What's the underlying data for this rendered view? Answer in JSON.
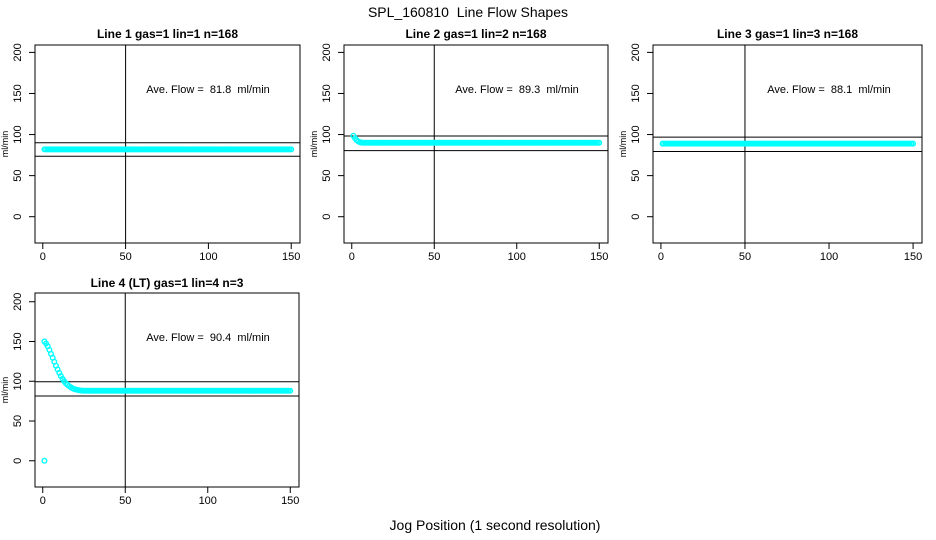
{
  "title": "SPL_160810  Line Flow Shapes",
  "xlabel": "Jog Position (1 second resolution)",
  "colors": {
    "points": "#00FFFF",
    "axis": "#000000",
    "background": "#FFFFFF"
  },
  "chart_data": [
    {
      "type": "scatter",
      "title": "Line 1 gas=1 lin=1 n=168",
      "annotation": "Ave. Flow =  81.8  ml/min",
      "ave_flow_ml_min": 81.8,
      "ylabel": "ml/min",
      "xticks": [
        0,
        50,
        100,
        150
      ],
      "yticks": [
        0,
        50,
        100,
        150,
        200
      ],
      "xlim": [
        -4.7,
        155.3
      ],
      "ylim": [
        -32,
        209
      ],
      "vline_x": 50,
      "hlines": [
        90.0,
        73.6
      ],
      "series": {
        "x_start": 1,
        "x_end": 150,
        "flat_value": 82,
        "transient": [],
        "outliers": []
      }
    },
    {
      "type": "scatter",
      "title": "Line 2 gas=1 lin=2 n=168",
      "annotation": "Ave. Flow =  89.3  ml/min",
      "ave_flow_ml_min": 89.3,
      "ylabel": "ml/min",
      "xticks": [
        0,
        50,
        100,
        150
      ],
      "yticks": [
        0,
        50,
        100,
        150,
        200
      ],
      "xlim": [
        -4.7,
        155.3
      ],
      "ylim": [
        -32,
        209
      ],
      "vline_x": 50,
      "hlines": [
        98.2,
        80.4
      ],
      "series": {
        "x_start": 1,
        "x_end": 150,
        "flat_value": 90,
        "transient": [
          [
            1,
            98.5
          ],
          [
            2,
            95.5
          ],
          [
            3,
            93
          ],
          [
            4,
            91.5
          ],
          [
            5,
            90.7
          ],
          [
            6,
            90.2
          ]
        ],
        "outliers": []
      }
    },
    {
      "type": "scatter",
      "title": "Line 3 gas=1 lin=3 n=168",
      "annotation": "Ave. Flow =  88.1  ml/min",
      "ave_flow_ml_min": 88.1,
      "ylabel": "ml/min",
      "xticks": [
        0,
        50,
        100,
        150
      ],
      "yticks": [
        0,
        50,
        100,
        150,
        200
      ],
      "xlim": [
        -4.7,
        155.3
      ],
      "ylim": [
        -32,
        209
      ],
      "vline_x": 50,
      "hlines": [
        96.9,
        79.3
      ],
      "series": {
        "x_start": 1,
        "x_end": 150,
        "flat_value": 89,
        "transient": [],
        "outliers": []
      }
    },
    {
      "type": "scatter",
      "title": "Line 4 (LT) gas=1 lin=4 n=3",
      "annotation": "Ave. Flow =  90.4  ml/min",
      "ave_flow_ml_min": 90.4,
      "ylabel": "ml/min",
      "xticks": [
        0,
        50,
        100,
        150
      ],
      "yticks": [
        0,
        50,
        100,
        150,
        200
      ],
      "xlim": [
        -4.7,
        155.3
      ],
      "ylim": [
        -33,
        211
      ],
      "vline_x": 50,
      "hlines": [
        99.4,
        81.4
      ],
      "series": {
        "x_start": 1,
        "x_end": 150,
        "flat_value": 88,
        "transient": [
          [
            1,
            150
          ],
          [
            2,
            147.5
          ],
          [
            3,
            144
          ],
          [
            4,
            139.5
          ],
          [
            5,
            134.5
          ],
          [
            6,
            129.5
          ],
          [
            7,
            124.5
          ],
          [
            8,
            119.5
          ],
          [
            9,
            115
          ],
          [
            10,
            110.5
          ],
          [
            11,
            106.5
          ],
          [
            12,
            103
          ],
          [
            13,
            100
          ],
          [
            14,
            97.5
          ],
          [
            15,
            95.5
          ],
          [
            16,
            93.8
          ],
          [
            17,
            92.4
          ],
          [
            18,
            91.2
          ],
          [
            19,
            90.3
          ],
          [
            20,
            89.6
          ],
          [
            21,
            89.1
          ],
          [
            22,
            88.7
          ],
          [
            23,
            88.4
          ],
          [
            24,
            88.2
          ],
          [
            25,
            88.1
          ]
        ],
        "outliers": [
          [
            1,
            0
          ]
        ]
      }
    }
  ]
}
